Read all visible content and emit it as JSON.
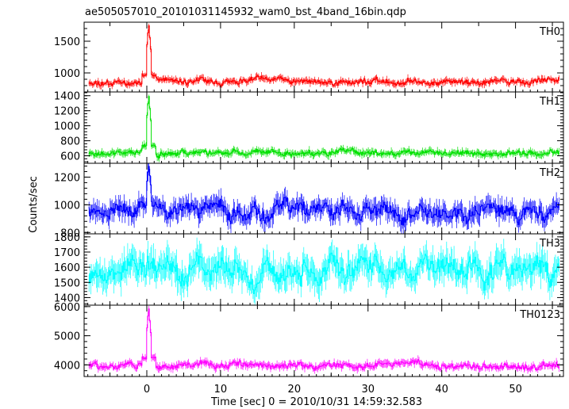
{
  "chart_data": {
    "type": "line",
    "title": "ae505057010_20101031145932_wam0_bst_4band_16bin.qdp",
    "xlabel": "Time [sec] 0 = 2010/10/31 14:59:32.583",
    "ylabel": "Counts/sec",
    "xlim": [
      -8.5,
      56.5
    ],
    "x_ticks": [
      0,
      10,
      20,
      30,
      40,
      50
    ],
    "x_tick_labels": [
      "0",
      "10",
      "20",
      "30",
      "40",
      "50"
    ],
    "series": [
      {
        "name": "TH0",
        "color": "#ff0000",
        "ylim": [
          700,
          1800
        ],
        "y_ticks": [
          1000,
          1500
        ],
        "baseline": 860,
        "noise": 45,
        "errbar": 45,
        "spike": 1780,
        "ripple": 0,
        "seed": 11
      },
      {
        "name": "TH1",
        "color": "#00e000",
        "ylim": [
          500,
          1450
        ],
        "y_ticks": [
          600,
          800,
          1000,
          1200,
          1400
        ],
        "baseline": 640,
        "noise": 35,
        "errbar": 40,
        "spike": 1420,
        "ripple": 0,
        "seed": 23
      },
      {
        "name": "TH2",
        "color": "#0000ff",
        "ylim": [
          790,
          1300
        ],
        "y_ticks": [
          800,
          1000,
          1200
        ],
        "baseline": 960,
        "noise": 55,
        "errbar": 60,
        "spike": 1290,
        "ripple": 35,
        "seed": 37
      },
      {
        "name": "TH3",
        "color": "#00ffff",
        "ylim": [
          1350,
          1820
        ],
        "y_ticks": [
          1400,
          1500,
          1600,
          1700,
          1800
        ],
        "baseline": 1580,
        "noise": 70,
        "errbar": 80,
        "spike": 0,
        "ripple": 60,
        "seed": 53
      },
      {
        "name": "TH0123",
        "color": "#ff00ff",
        "ylim": [
          3600,
          6050
        ],
        "y_ticks": [
          4000,
          5000,
          6000
        ],
        "baseline": 3980,
        "noise": 110,
        "errbar": 110,
        "spike": 6000,
        "ripple": 0,
        "seed": 71
      }
    ],
    "bins": {
      "start": -7.9,
      "end": 55.9,
      "step": 0.125
    },
    "spike_time": 0.2,
    "grid": false
  }
}
